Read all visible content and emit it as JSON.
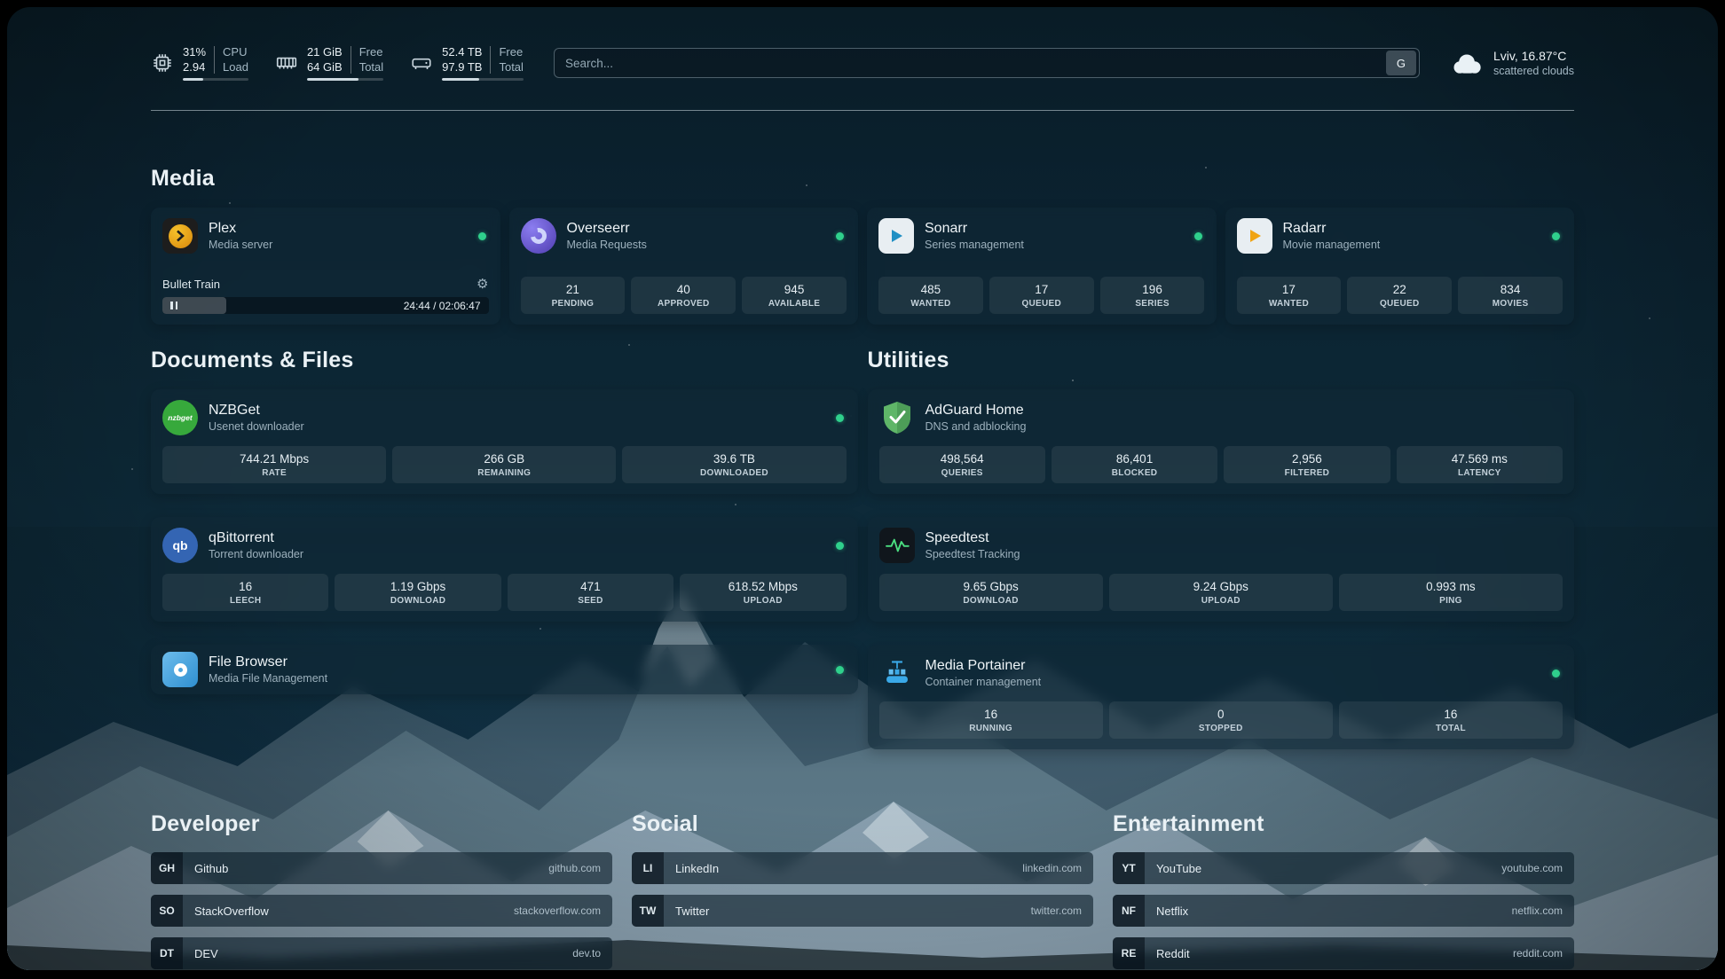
{
  "colors": {
    "status_online": "#2fd08c",
    "plex_amber": "#e5a00d",
    "overseerr_purple": "#5f4bc2",
    "sonarr_blue": "#1f8fc4",
    "radarr_amber": "#f0a414",
    "nzbget_green": "#37a93c",
    "qbittorrent_blue": "#3465b3",
    "filebrowser_blue": "#2f8fd0",
    "adguard_green": "#5fb668",
    "speedtest_wave": "#4ade80",
    "portainer_blue": "#3aa9e8"
  },
  "header": {
    "cpu": {
      "icon": "cpu-chip-icon",
      "value_top": "31%",
      "value_bottom": "2.94",
      "label_top": "CPU",
      "label_bottom": "Load",
      "usage_percent": 31
    },
    "memory": {
      "icon": "memory-icon",
      "value_top": "21 GiB",
      "value_bottom": "64 GiB",
      "label_top": "Free",
      "label_bottom": "Total",
      "usage_percent": 67
    },
    "disk": {
      "icon": "disk-icon",
      "value_top": "52.4 TB",
      "value_bottom": "97.9 TB",
      "label_top": "Free",
      "label_bottom": "Total",
      "usage_percent": 46
    },
    "search": {
      "placeholder": "Search...",
      "provider_button": "G"
    },
    "weather": {
      "icon": "cloud-icon",
      "location": "Lviv, 16.87°C",
      "condition": "scattered clouds"
    }
  },
  "sections": {
    "media": {
      "title": "Media",
      "cards": {
        "plex": {
          "name": "Plex",
          "subtitle": "Media server",
          "icon": "plex-icon",
          "status": "online",
          "now_playing": {
            "title": "Bullet Train",
            "state": "paused",
            "time_display": "24:44 / 02:06:47",
            "progress_percent": 19.5
          }
        },
        "overseerr": {
          "name": "Overseerr",
          "subtitle": "Media Requests",
          "icon": "overseerr-icon",
          "status": "online",
          "stats": [
            {
              "value": "21",
              "label": "PENDING"
            },
            {
              "value": "40",
              "label": "APPROVED"
            },
            {
              "value": "945",
              "label": "AVAILABLE"
            }
          ]
        },
        "sonarr": {
          "name": "Sonarr",
          "subtitle": "Series management",
          "icon": "sonarr-icon",
          "status": "online",
          "stats": [
            {
              "value": "485",
              "label": "WANTED"
            },
            {
              "value": "17",
              "label": "QUEUED"
            },
            {
              "value": "196",
              "label": "SERIES"
            }
          ]
        },
        "radarr": {
          "name": "Radarr",
          "subtitle": "Movie management",
          "icon": "radarr-icon",
          "status": "online",
          "stats": [
            {
              "value": "17",
              "label": "WANTED"
            },
            {
              "value": "22",
              "label": "QUEUED"
            },
            {
              "value": "834",
              "label": "MOVIES"
            }
          ]
        }
      }
    },
    "documents": {
      "title": "Documents & Files",
      "cards": {
        "nzbget": {
          "name": "NZBGet",
          "subtitle": "Usenet downloader",
          "icon": "nzbget-icon",
          "icon_text": "nzbget",
          "status": "online",
          "stats": [
            {
              "value": "744.21 Mbps",
              "label": "RATE"
            },
            {
              "value": "266 GB",
              "label": "REMAINING"
            },
            {
              "value": "39.6 TB",
              "label": "DOWNLOADED"
            }
          ]
        },
        "qbittorrent": {
          "name": "qBittorrent",
          "subtitle": "Torrent downloader",
          "icon": "qbittorrent-icon",
          "icon_text": "qb",
          "status": "online",
          "stats": [
            {
              "value": "16",
              "label": "LEECH"
            },
            {
              "value": "1.19 Gbps",
              "label": "DOWNLOAD"
            },
            {
              "value": "471",
              "label": "SEED"
            },
            {
              "value": "618.52 Mbps",
              "label": "UPLOAD"
            }
          ]
        },
        "filebrowser": {
          "name": "File Browser",
          "subtitle": "Media File Management",
          "icon": "filebrowser-icon",
          "status": "online"
        }
      }
    },
    "utilities": {
      "title": "Utilities",
      "cards": {
        "adguard": {
          "name": "AdGuard Home",
          "subtitle": "DNS and adblocking",
          "icon": "adguard-shield-icon",
          "stats": [
            {
              "value": "498,564",
              "label": "QUERIES"
            },
            {
              "value": "86,401",
              "label": "BLOCKED"
            },
            {
              "value": "2,956",
              "label": "FILTERED"
            },
            {
              "value": "47.569 ms",
              "label": "LATENCY"
            }
          ]
        },
        "speedtest": {
          "name": "Speedtest",
          "subtitle": "Speedtest Tracking",
          "icon": "speedtest-icon",
          "stats": [
            {
              "value": "9.65 Gbps",
              "label": "DOWNLOAD"
            },
            {
              "value": "9.24 Gbps",
              "label": "UPLOAD"
            },
            {
              "value": "0.993 ms",
              "label": "PING"
            }
          ]
        },
        "portainer": {
          "name": "Media Portainer",
          "subtitle": "Container management",
          "icon": "portainer-icon",
          "status": "online",
          "stats": [
            {
              "value": "16",
              "label": "RUNNING"
            },
            {
              "value": "0",
              "label": "STOPPED"
            },
            {
              "value": "16",
              "label": "TOTAL"
            }
          ]
        }
      }
    },
    "bookmarks": {
      "developer": {
        "title": "Developer",
        "items": [
          {
            "abbr": "GH",
            "name": "Github",
            "url": "github.com"
          },
          {
            "abbr": "SO",
            "name": "StackOverflow",
            "url": "stackoverflow.com"
          },
          {
            "abbr": "DT",
            "name": "DEV",
            "url": "dev.to"
          }
        ]
      },
      "social": {
        "title": "Social",
        "items": [
          {
            "abbr": "LI",
            "name": "LinkedIn",
            "url": "linkedin.com"
          },
          {
            "abbr": "TW",
            "name": "Twitter",
            "url": "twitter.com"
          }
        ]
      },
      "entertainment": {
        "title": "Entertainment",
        "items": [
          {
            "abbr": "YT",
            "name": "YouTube",
            "url": "youtube.com"
          },
          {
            "abbr": "NF",
            "name": "Netflix",
            "url": "netflix.com"
          },
          {
            "abbr": "RE",
            "name": "Reddit",
            "url": "reddit.com"
          }
        ]
      }
    }
  }
}
